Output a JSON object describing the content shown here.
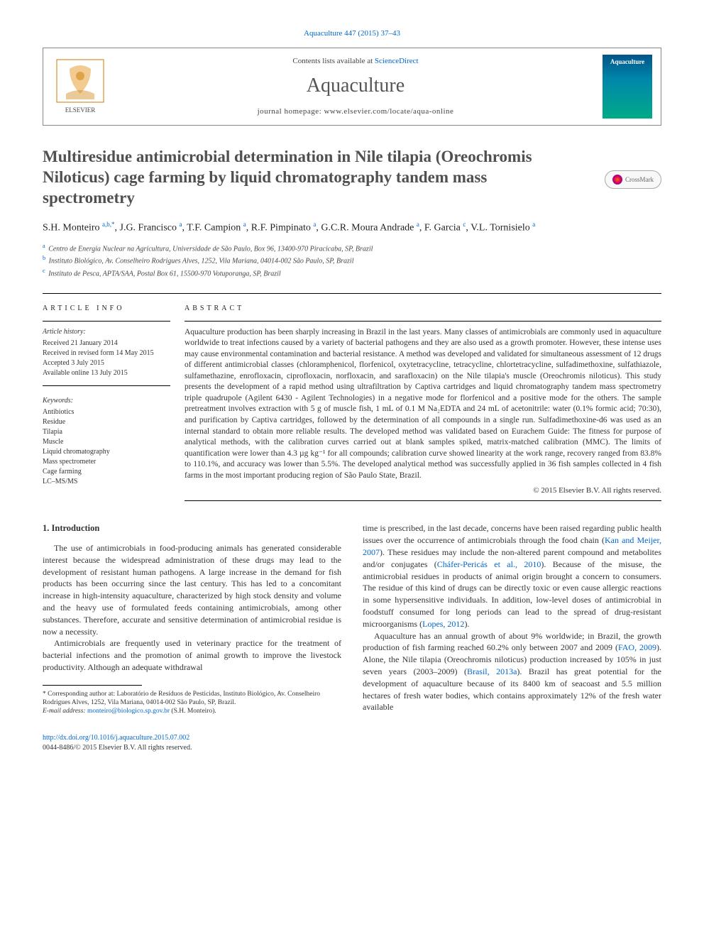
{
  "citation": "Aquaculture 447 (2015) 37–43",
  "header": {
    "contents_prefix": "Contents lists available at ",
    "contents_link": "ScienceDirect",
    "journal": "Aquaculture",
    "homepage_prefix": "journal homepage: ",
    "homepage": "www.elsevier.com/locate/aqua-online",
    "cover_label": "Aquaculture"
  },
  "crossmark": "CrossMark",
  "title": "Multiresidue antimicrobial determination in Nile tilapia (Oreochromis Niloticus) cage farming by liquid chromatography tandem mass spectrometry",
  "authors_html": "S.H. Monteiro <sup>a,b,*</sup>, J.G. Francisco <sup>a</sup>, T.F. Campion <sup>a</sup>, R.F. Pimpinato <sup>a</sup>, G.C.R. Moura Andrade <sup>a</sup>, F. Garcia <sup>c</sup>, V.L. Tornisielo <sup>a</sup>",
  "affiliations": [
    {
      "sup": "a",
      "text": "Centro de Energia Nuclear na Agricultura, Universidade de São Paulo, Box 96, 13400-970 Piracicaba, SP, Brazil"
    },
    {
      "sup": "b",
      "text": "Instituto Biológico, Av. Conselheiro Rodrigues Alves, 1252, Vila Mariana, 04014-002 São Paulo, SP, Brazil"
    },
    {
      "sup": "c",
      "text": "Instituto de Pesca, APTA/SAA, Postal Box 61, 15500-970 Votuporanga, SP, Brazil"
    }
  ],
  "info": {
    "heading": "ARTICLE INFO",
    "history_label": "Article history:",
    "history": [
      "Received 21 January 2014",
      "Received in revised form 14 May 2015",
      "Accepted 3 July 2015",
      "Available online 13 July 2015"
    ],
    "keywords_label": "Keywords:",
    "keywords": [
      "Antibiotics",
      "Residue",
      "Tilapia",
      "Muscle",
      "Liquid chromatography",
      "Mass spectrometer",
      "Cage farming",
      "LC–MS/MS"
    ]
  },
  "abstract": {
    "heading": "ABSTRACT",
    "text": "Aquaculture production has been sharply increasing in Brazil in the last years. Many classes of antimicrobials are commonly used in aquaculture worldwide to treat infections caused by a variety of bacterial pathogens and they are also used as a growth promoter. However, these intense uses may cause environmental contamination and bacterial resistance. A method was developed and validated for simultaneous assessment of 12 drugs of different antimicrobial classes (chloramphenicol, florfenicol, oxytetracycline, tetracycline, chlortetracycline, sulfadimethoxine, sulfathiazole, sulfamethazine, enrofloxacin, ciprofloxacin, norfloxacin, and sarafloxacin) on the Nile tilapia's muscle (Oreochromis niloticus). This study presents the development of a rapid method using ultrafiltration by Captiva cartridges and liquid chromatography tandem mass spectrometry triple quadrupole (Agilent 6430 - Agilent Technologies) in a negative mode for florfenicol and a positive mode for the others. The sample pretreatment involves extraction with 5 g of muscle fish, 1 mL of 0.1 M Na₂EDTA and 24 mL of acetonitrile: water (0.1% formic acid; 70:30), and purification by Captiva cartridges, followed by the determination of all compounds in a single run. Sulfadimethoxine-d6 was used as an internal standard to obtain more reliable results. The developed method was validated based on Eurachem Guide: The fitness for purpose of analytical methods, with the calibration curves carried out at blank samples spiked, matrix-matched calibration (MMC). The limits of quantification were lower than 4.3 µg kg⁻¹ for all compounds; calibration curve showed linearity at the work range, recovery ranged from 83.8% to 110.1%, and accuracy was lower than 5.5%. The developed analytical method was successfully applied in 36 fish samples collected in 4 fish farms in the most important producing region of São Paulo State, Brazil.",
    "copyright": "© 2015 Elsevier B.V. All rights reserved."
  },
  "body": {
    "section_heading": "1. Introduction",
    "col1_p1": "The use of antimicrobials in food-producing animals has generated considerable interest because the widespread administration of these drugs may lead to the development of resistant human pathogens. A large increase in the demand for fish products has been occurring since the last century. This has led to a concomitant increase in high-intensity aquaculture, characterized by high stock density and volume and the heavy use of formulated feeds containing antimicrobials, among other substances. Therefore, accurate and sensitive determination of antimicrobial residue is now a necessity.",
    "col1_p2": "Antimicrobials are frequently used in veterinary practice for the treatment of bacterial infections and the promotion of animal growth to improve the livestock productivity. Although an adequate withdrawal",
    "col2_p1_a": "time is prescribed, in the last decade, concerns have been raised regarding public health issues over the occurrence of antimicrobials through the food chain (",
    "col2_p1_link1": "Kan and Meijer, 2007",
    "col2_p1_b": "). These residues may include the non-altered parent compound and metabolites and/or conjugates (",
    "col2_p1_link2": "Cháfer-Pericás et al., 2010",
    "col2_p1_c": "). Because of the misuse, the antimicrobial residues in products of animal origin brought a concern to consumers. The residue of this kind of drugs can be directly toxic or even cause allergic reactions in some hypersensitive individuals. In addition, low-level doses of antimicrobial in foodstuff consumed for long periods can lead to the spread of drug-resistant microorganisms (",
    "col2_p1_link3": "Lopes, 2012",
    "col2_p1_d": ").",
    "col2_p2_a": "Aquaculture has an annual growth of about 9% worldwide; in Brazil, the growth production of fish farming reached 60.2% only between 2007 and 2009 (",
    "col2_p2_link1": "FAO, 2009",
    "col2_p2_b": "). Alone, the Nile tilapia (Oreochromis niloticus) production increased by 105% in just seven years (2003–2009) (",
    "col2_p2_link2": "Brasil, 2013a",
    "col2_p2_c": "). Brazil has great potential for the development of aquaculture because of its 8400 km of seacoast and 5.5 million hectares of fresh water bodies, which contains approximately 12% of the fresh water available"
  },
  "footnote": {
    "corr_label": "* Corresponding author at:",
    "corr_text": " Laboratório de Resíduos de Pesticidas, Instituto Biológico, Av. Conselheiro Rodrigues Alves, 1252, Vila Mariana, 04014-002 São Paulo, SP, Brazil.",
    "email_label": "E-mail address: ",
    "email": "monteiro@biologico.sp.gov.br",
    "email_suffix": " (S.H. Monteiro)."
  },
  "footer": {
    "doi": "http://dx.doi.org/10.1016/j.aquaculture.2015.07.002",
    "issn": "0044-8486/© 2015 Elsevier B.V. All rights reserved."
  },
  "colors": {
    "link": "#0066cc",
    "text": "#333333",
    "heading": "#505050"
  }
}
